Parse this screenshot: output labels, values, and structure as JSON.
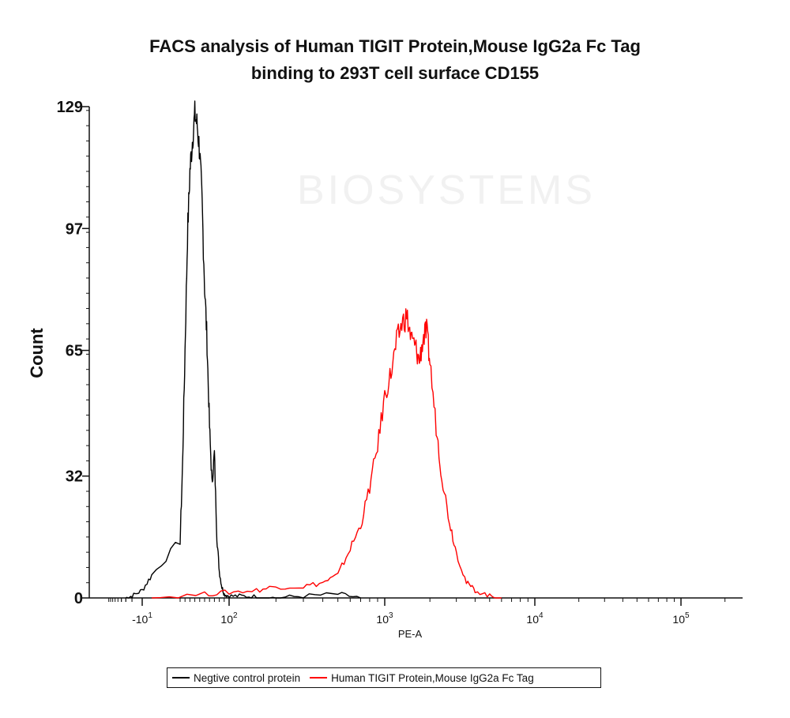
{
  "title_lines": [
    "FACS analysis of Human TIGIT Protein,Mouse IgG2a Fc Tag",
    "binding to 293T cell surface CD155"
  ],
  "watermark": "BIOSYSTEMS",
  "chart_data": {
    "type": "line",
    "title": "FACS analysis of Human TIGIT Protein,Mouse IgG2a Fc Tag binding to 293T cell surface CD155",
    "xlabel": "PE-A",
    "ylabel": "Count",
    "ylim": [
      0,
      129
    ],
    "y_ticks": [
      "0",
      "32",
      "65",
      "97",
      "129"
    ],
    "y_tick_values": [
      0,
      32,
      65,
      97,
      129
    ],
    "x_ticks": [
      {
        "base": "-10",
        "exp": "1",
        "pos": -10
      },
      {
        "base": "10",
        "exp": "2",
        "pos": 100
      },
      {
        "base": "10",
        "exp": "3",
        "pos": 1000
      },
      {
        "base": "10",
        "exp": "4",
        "pos": 10000
      },
      {
        "base": "10",
        "exp": "5",
        "pos": 100000
      }
    ],
    "x_scale": "biexponential",
    "grid": false,
    "legend_position": "bottom",
    "series": [
      {
        "name": "Negtive control protein",
        "color": "#000000",
        "x": [
          -30,
          -20,
          -10,
          -5,
          0,
          5,
          10,
          15,
          20,
          25,
          30,
          35,
          40,
          45,
          50,
          55,
          60,
          65,
          70,
          75,
          80,
          85,
          90,
          100,
          120,
          150,
          200,
          300,
          500,
          700
        ],
        "values": [
          0,
          0.5,
          2,
          6,
          15,
          35,
          65,
          95,
          112,
          120,
          127,
          124,
          117,
          103,
          82,
          67,
          45,
          30,
          38,
          16,
          7,
          3,
          1,
          0.5,
          0.5,
          0.3,
          0,
          0.5,
          1,
          0
        ]
      },
      {
        "name": "Human TIGIT Protein,Mouse IgG2a Fc Tag",
        "color": "#ff0000",
        "x": [
          -5,
          50,
          100,
          150,
          200,
          300,
          400,
          500,
          600,
          700,
          800,
          900,
          1000,
          1100,
          1200,
          1300,
          1400,
          1500,
          1600,
          1700,
          1800,
          1900,
          2000,
          2200,
          2400,
          2700,
          3000,
          3500,
          4000,
          5000,
          6000
        ],
        "values": [
          0,
          1,
          1.5,
          2,
          3,
          3,
          4,
          6,
          13,
          19,
          29,
          40,
          53,
          59,
          67,
          72,
          74,
          68,
          66,
          62,
          68,
          70,
          62,
          45,
          32,
          20,
          12,
          4,
          2,
          0.5,
          0
        ]
      }
    ]
  }
}
